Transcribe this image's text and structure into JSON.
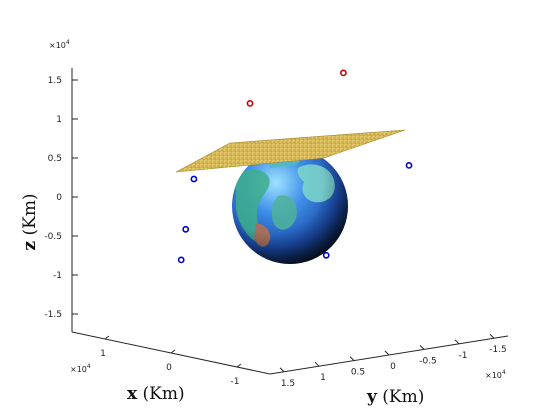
{
  "chart_data": {
    "type": "scatter",
    "title": "",
    "xlabel": {
      "var": "x",
      "unit": " (Km)"
    },
    "ylabel": {
      "var": "y",
      "unit": " (Km)"
    },
    "zlabel": {
      "var": "z",
      "unit": " (Km)"
    },
    "z_multiplier": "×10",
    "z_multiplier_exp": "4",
    "x_multiplier": "×10",
    "x_multiplier_exp": "4",
    "y_multiplier": "×10",
    "y_multiplier_exp": "4",
    "z_ticks": [
      "1.5",
      "1",
      "0.5",
      "0",
      "-0.5",
      "-1",
      "-1.5"
    ],
    "x_ticks": [
      "1",
      "0",
      "-1"
    ],
    "y_ticks": [
      "1.5",
      "1",
      "0.5",
      "0",
      "-0.5",
      "-1",
      "-1.5"
    ],
    "z_range": [
      -1.7,
      1.7
    ],
    "grid": false,
    "earth_colors": {
      "ocean": "#2a6fd6",
      "land": "#3fae8c",
      "shadow": "#0b1f3a"
    },
    "plane_color": "#e2c25a",
    "series": [
      {
        "color": "#cc0000",
        "marker": "circle-open",
        "points": [
          {
            "x": 0.2,
            "y": 0.5,
            "z": 1.32
          },
          {
            "x": -0.6,
            "y": -0.2,
            "z": 1.43
          }
        ]
      },
      {
        "color": "#0000cc",
        "marker": "circle-open",
        "points": [
          {
            "x": 0.9,
            "y": 0.8,
            "z": 0.55
          },
          {
            "x": 0.9,
            "y": 0.9,
            "z": -0.08
          },
          {
            "x": 1.0,
            "y": 0.9,
            "z": -0.45
          },
          {
            "x": -0.6,
            "y": -1.0,
            "z": 0.12
          },
          {
            "x": -0.4,
            "y": -0.1,
            "z": -0.85
          }
        ]
      }
    ]
  }
}
